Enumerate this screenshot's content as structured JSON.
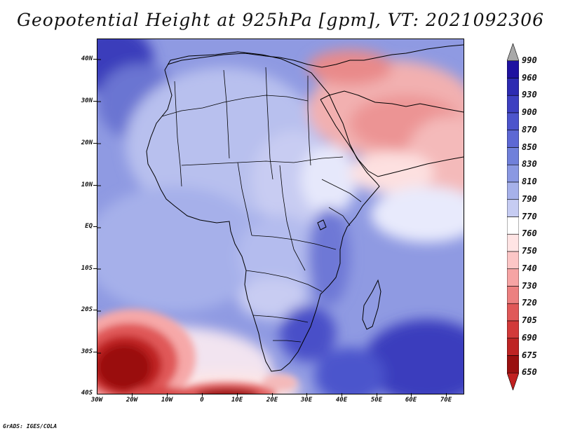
{
  "title": "Geopotential Height at 925hPa [gpm], VT: 2021092306",
  "credit": "GrADS: IGES/COLA",
  "map": {
    "projection": "latlon",
    "lon_range": [
      -30,
      75
    ],
    "lat_range": [
      -40,
      45
    ],
    "lat_ticks": [
      "40N",
      "30N",
      "20N",
      "10N",
      "EQ",
      "10S",
      "20S",
      "30S",
      "40S"
    ],
    "lon_ticks": [
      "30W",
      "20W",
      "10W",
      "0",
      "10E",
      "20E",
      "30E",
      "40E",
      "50E",
      "60E",
      "70E"
    ]
  },
  "colorbar": {
    "levels": [
      "990",
      "960",
      "930",
      "900",
      "870",
      "850",
      "830",
      "810",
      "790",
      "770",
      "760",
      "750",
      "740",
      "730",
      "720",
      "705",
      "690",
      "675",
      "650"
    ],
    "colors": [
      "#a8a8a8",
      "#1f12a0",
      "#2d2bb2",
      "#3d40c1",
      "#4c54cc",
      "#5d68d4",
      "#7080da",
      "#8a98e2",
      "#a6b1ea",
      "#c6ccf2",
      "#ffffff",
      "#ffe4e4",
      "#fcc6c6",
      "#f6a4a4",
      "#ec8080",
      "#e05858",
      "#d23a3a",
      "#be2424",
      "#9a1010",
      "#c02020"
    ]
  }
}
